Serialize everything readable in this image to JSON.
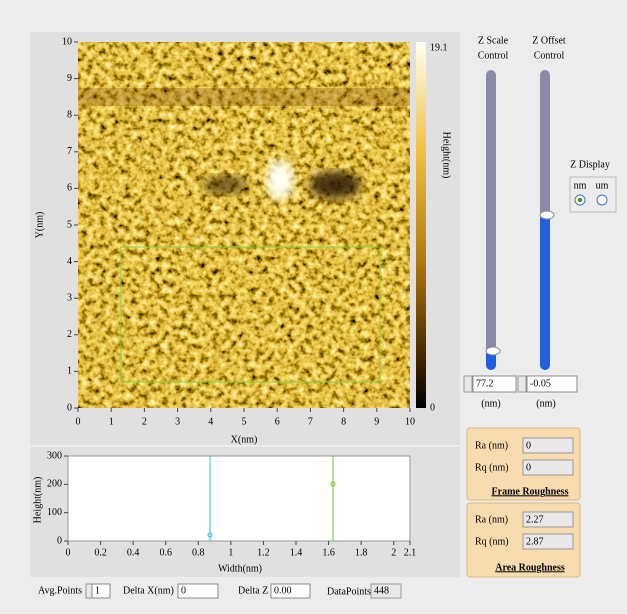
{
  "image_panel": {
    "xlabel": "X(nm)",
    "ylabel": "Y(nm)",
    "xlim": [
      0,
      10
    ],
    "ylim": [
      0,
      10
    ],
    "xticks": [
      0,
      1,
      2,
      3,
      4,
      5,
      6,
      7,
      8,
      9,
      10
    ],
    "yticks": [
      0,
      1,
      2,
      3,
      4,
      5,
      6,
      7,
      8,
      9,
      10
    ],
    "colorbar": {
      "label": "Height(nm)",
      "max": 19.1,
      "min": 0
    }
  },
  "z_scale": {
    "label_line1": "Z Scale",
    "label_line2": "Control",
    "value": 77.2,
    "unit": "(nm)"
  },
  "z_offset": {
    "label_line1": "Z Offset",
    "label_line2": "Control",
    "value": -0.05,
    "unit": "(nm)"
  },
  "z_display": {
    "label": "Z Display",
    "options": [
      "nm",
      "um"
    ]
  },
  "frame_roughness": {
    "ra_label": "Ra (nm)",
    "ra": 0,
    "rq_label": "Rq (nm)",
    "rq": 0,
    "title": "Frame Roughness"
  },
  "area_roughness": {
    "ra_label": "Ra (nm)",
    "ra": 2.27,
    "rq_label": "Rq (nm)",
    "rq": 2.87,
    "title": "Area Roughness"
  },
  "profile": {
    "xlabel": "Width(nm)",
    "ylabel": "Height(nm)",
    "xlim": [
      0,
      2.1
    ],
    "ylim": [
      0,
      300
    ],
    "xticks": [
      0,
      0.2,
      0.4,
      0.6,
      0.8,
      1,
      1.2,
      1.4,
      1.6,
      1.8,
      2,
      2.1
    ],
    "yticks": [
      0,
      100,
      200,
      300
    ]
  },
  "controls": {
    "avg_points_label": "Avg.Points",
    "avg_points": 1,
    "delta_x_label": "Delta X(nm)",
    "delta_x": 0,
    "delta_z_label": "Delta Z",
    "delta_z": "0.00",
    "data_points_label": "DataPoints",
    "data_points": 448
  }
}
